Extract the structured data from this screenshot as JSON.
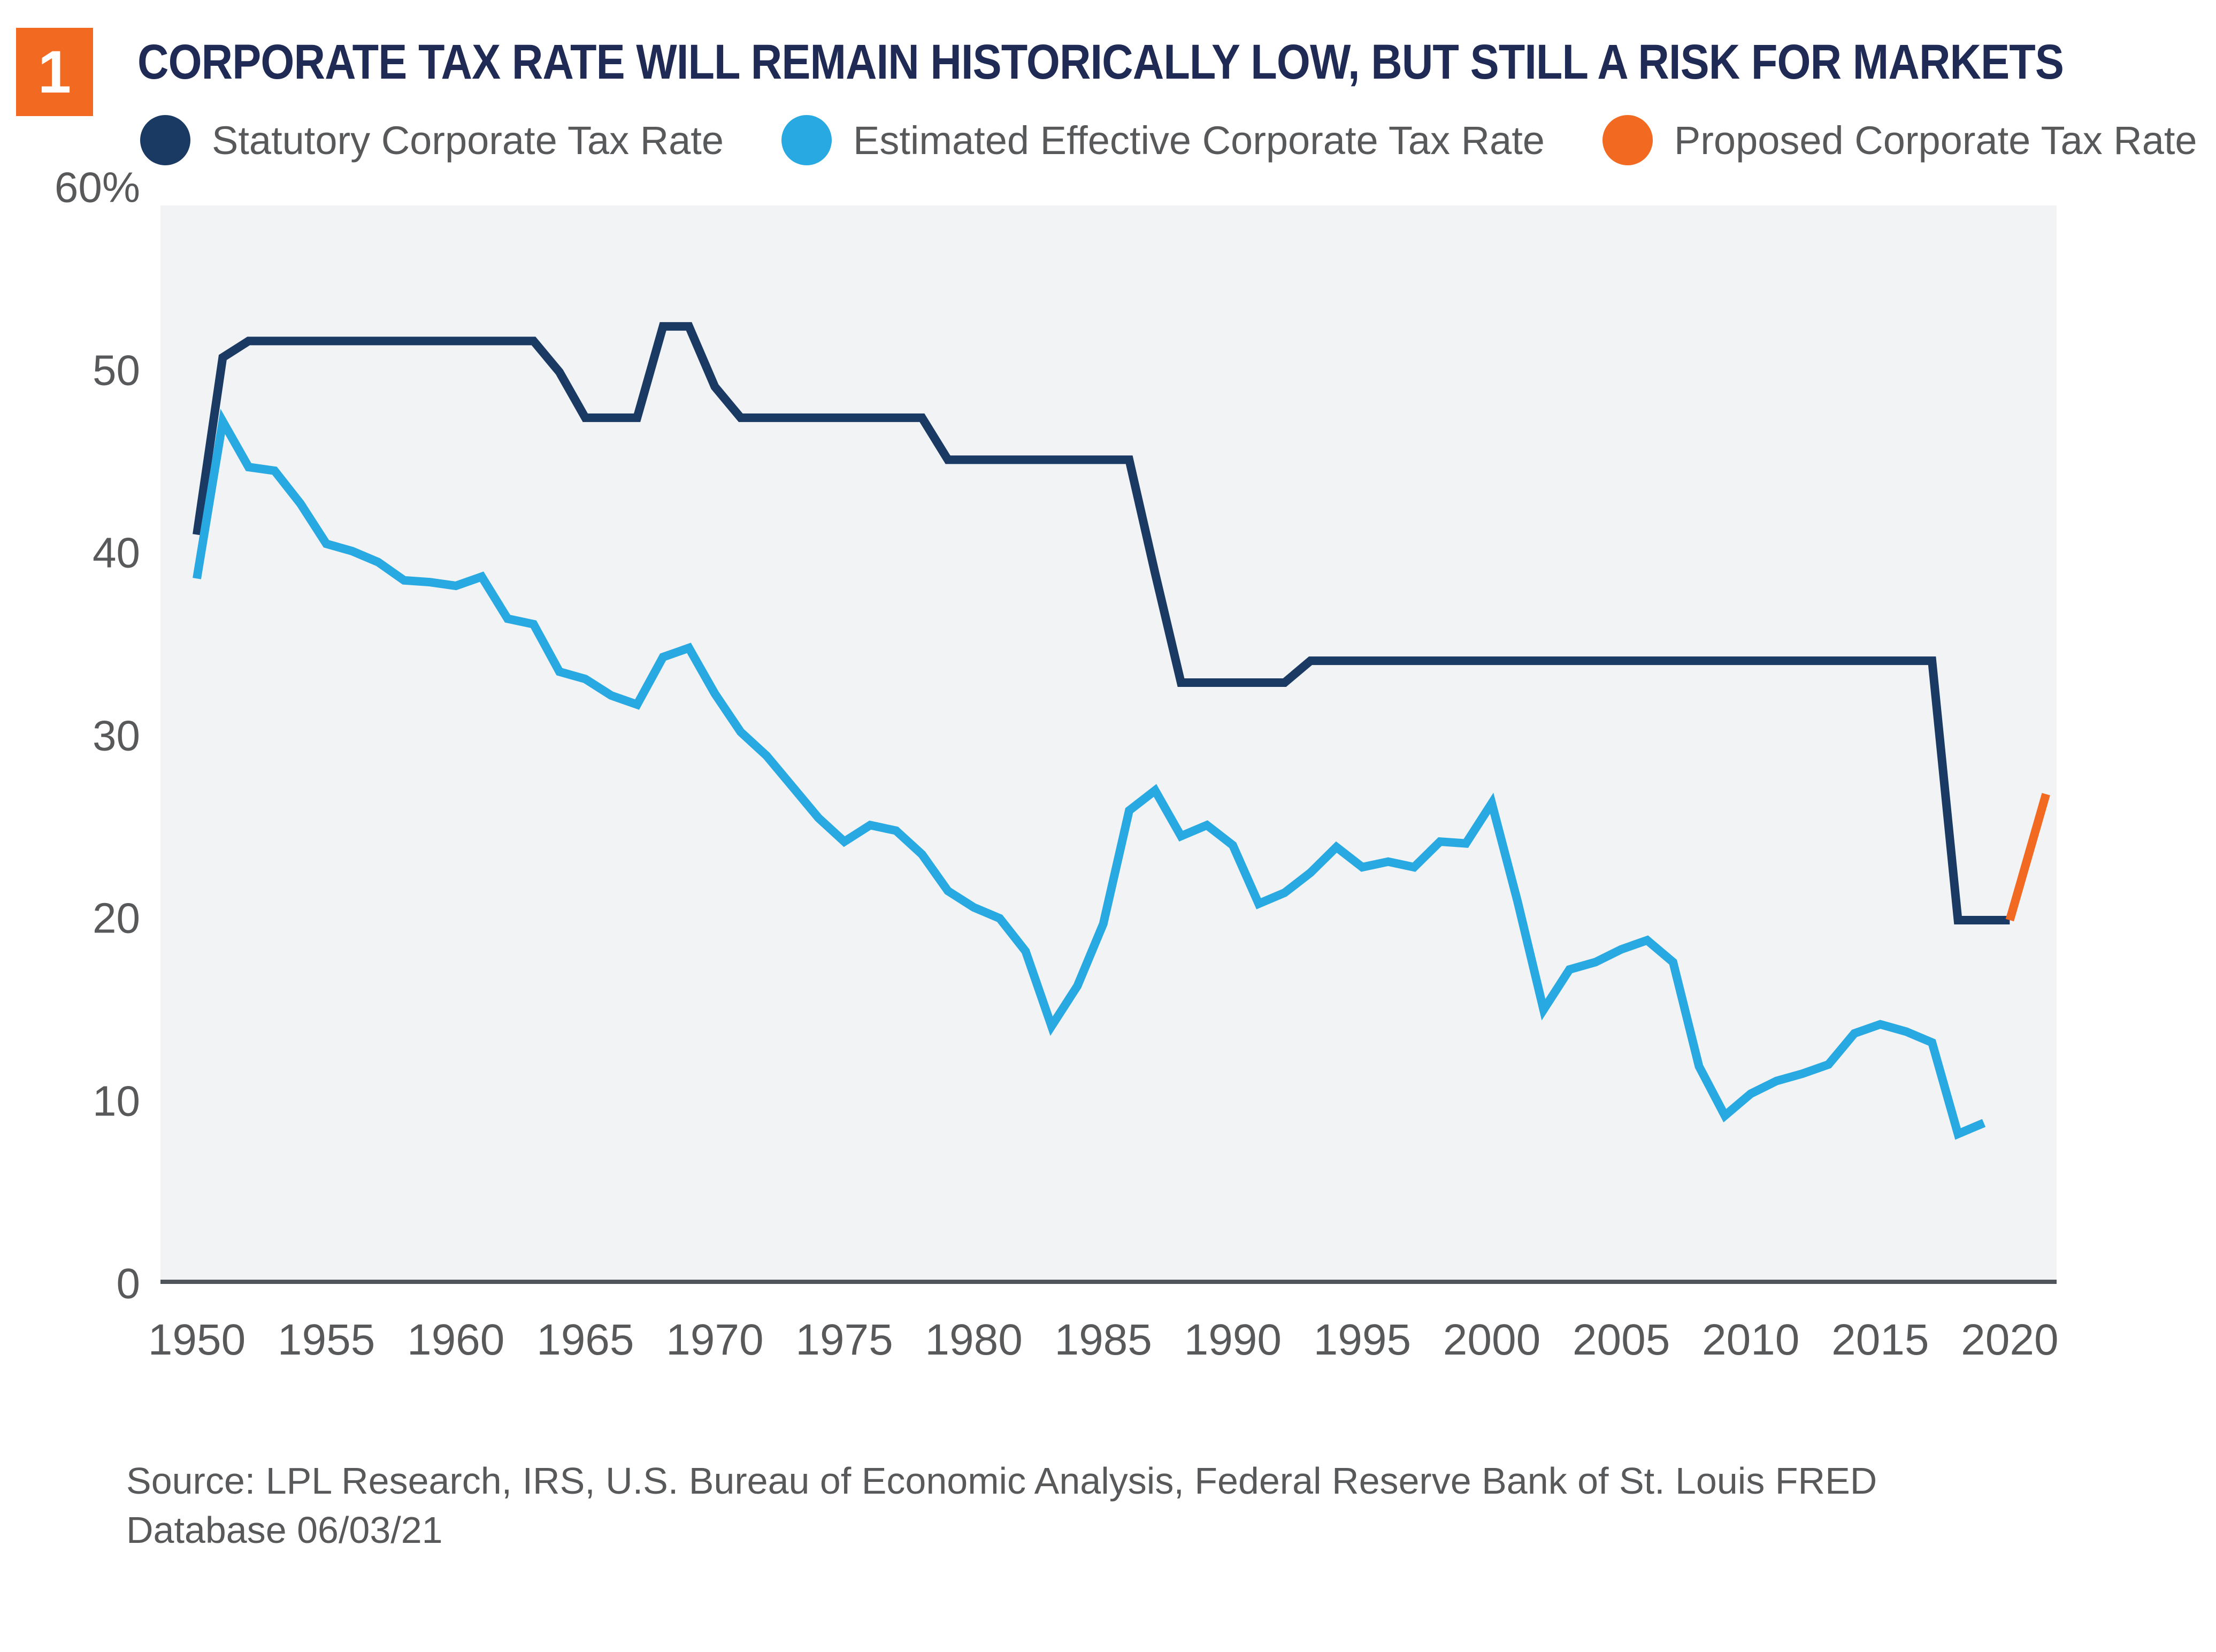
{
  "badge": {
    "number": "1",
    "color": "#F26A21"
  },
  "header": {
    "title": "CORPORATE TAX RATE WILL REMAIN HISTORICALLY LOW, BUT STILL A RISK FOR MARKETS",
    "color": "#1F2A55"
  },
  "legend": [
    {
      "label": "Statutory Corporate Tax Rate",
      "color": "#1B3A63"
    },
    {
      "label": "Estimated Effective Corporate Tax Rate",
      "color": "#29A9E1"
    },
    {
      "label": "Proposed Corporate Tax Rate",
      "color": "#F26A21"
    }
  ],
  "source": {
    "line1": "Source: LPL Research, IRS, U.S. Bureau of Economic Analysis, Federal Reserve Bank of St. Louis FRED",
    "line2": "Database 06/03/21"
  },
  "chart_data": {
    "type": "line",
    "title": "CORPORATE TAX RATE WILL REMAIN HISTORICALLY LOW, BUT STILL A RISK FOR MARKETS",
    "xlabel": "",
    "ylabel": "",
    "grid": false,
    "legend_position": "top",
    "plot_background": "#F2F3F5",
    "axis_line_color": "#50555B",
    "x_range": [
      1948.6,
      2021.8
    ],
    "ylim": [
      0,
      60
    ],
    "x_ticks": [
      "1950",
      "1955",
      "1960",
      "1965",
      "1970",
      "1975",
      "1980",
      "1985",
      "1990",
      "1995",
      "2000",
      "2005",
      "2010",
      "2015",
      "2020"
    ],
    "y_ticks": [
      {
        "value": 0,
        "label": "0"
      },
      {
        "value": 10,
        "label": "10"
      },
      {
        "value": 20,
        "label": "20"
      },
      {
        "value": 30,
        "label": "30"
      },
      {
        "value": 40,
        "label": "40"
      },
      {
        "value": 50,
        "label": "50"
      },
      {
        "value": 60,
        "label": "60%"
      }
    ],
    "series": [
      {
        "name": "Statutory Corporate Tax Rate",
        "color": "#1B3A63",
        "points": [
          [
            1950,
            41.1
          ],
          [
            1951,
            50.8
          ],
          [
            1952,
            51.7
          ],
          [
            1963,
            51.7
          ],
          [
            1964,
            50
          ],
          [
            1965,
            47.5
          ],
          [
            1967,
            47.5
          ],
          [
            1968,
            52.5
          ],
          [
            1969,
            52.5
          ],
          [
            1970,
            49.2
          ],
          [
            1971,
            47.5
          ],
          [
            1978,
            47.5
          ],
          [
            1979,
            45.2
          ],
          [
            1986,
            45.2
          ],
          [
            1987,
            39
          ],
          [
            1988,
            33
          ],
          [
            1992,
            33
          ],
          [
            1993,
            34.2
          ],
          [
            2017,
            34.2
          ],
          [
            2018,
            20
          ],
          [
            2020,
            20
          ]
        ]
      },
      {
        "name": "Estimated Effective Corporate Tax Rate",
        "color": "#29A9E1",
        "points": [
          [
            1950,
            38.7
          ],
          [
            1951,
            47.3
          ],
          [
            1952,
            44.8
          ],
          [
            1953,
            44.6
          ],
          [
            1954,
            42.8
          ],
          [
            1955,
            40.6
          ],
          [
            1956,
            40.2
          ],
          [
            1957,
            39.6
          ],
          [
            1958,
            38.6
          ],
          [
            1959,
            38.5
          ],
          [
            1960,
            38.3
          ],
          [
            1961,
            38.8
          ],
          [
            1962,
            36.5
          ],
          [
            1963,
            36.2
          ],
          [
            1964,
            33.6
          ],
          [
            1965,
            33.2
          ],
          [
            1966,
            32.3
          ],
          [
            1967,
            31.8
          ],
          [
            1968,
            34.4
          ],
          [
            1969,
            34.9
          ],
          [
            1970,
            32.4
          ],
          [
            1971,
            30.3
          ],
          [
            1972,
            29.0
          ],
          [
            1973,
            27.3
          ],
          [
            1974,
            25.6
          ],
          [
            1975,
            24.3
          ],
          [
            1976,
            25.2
          ],
          [
            1977,
            24.9
          ],
          [
            1978,
            23.6
          ],
          [
            1979,
            21.6
          ],
          [
            1980,
            20.7
          ],
          [
            1981,
            20.1
          ],
          [
            1982,
            18.3
          ],
          [
            1983,
            14.2
          ],
          [
            1984,
            16.4
          ],
          [
            1985,
            19.8
          ],
          [
            1986,
            26.0
          ],
          [
            1987,
            27.1
          ],
          [
            1988,
            24.6
          ],
          [
            1989,
            25.2
          ],
          [
            1990,
            24.1
          ],
          [
            1991,
            20.9
          ],
          [
            1992,
            21.5
          ],
          [
            1993,
            22.6
          ],
          [
            1994,
            24.0
          ],
          [
            1995,
            22.9
          ],
          [
            1996,
            23.2
          ],
          [
            1997,
            22.9
          ],
          [
            1998,
            24.3
          ],
          [
            1999,
            24.2
          ],
          [
            2000,
            26.4
          ],
          [
            2001,
            21.0
          ],
          [
            2002,
            15.1
          ],
          [
            2003,
            17.3
          ],
          [
            2004,
            17.7
          ],
          [
            2005,
            18.4
          ],
          [
            2006,
            18.9
          ],
          [
            2007,
            17.7
          ],
          [
            2008,
            12.0
          ],
          [
            2009,
            9.3
          ],
          [
            2010,
            10.5
          ],
          [
            2011,
            11.2
          ],
          [
            2012,
            11.6
          ],
          [
            2013,
            12.1
          ],
          [
            2014,
            13.8
          ],
          [
            2015,
            14.3
          ],
          [
            2016,
            13.9
          ],
          [
            2017,
            13.3
          ],
          [
            2018,
            8.3
          ],
          [
            2019,
            8.9
          ]
        ]
      },
      {
        "name": "Proposed Corporate Tax Rate",
        "color": "#F26A21",
        "points": [
          [
            2020,
            20
          ],
          [
            2021.4,
            26.9
          ]
        ]
      }
    ]
  }
}
